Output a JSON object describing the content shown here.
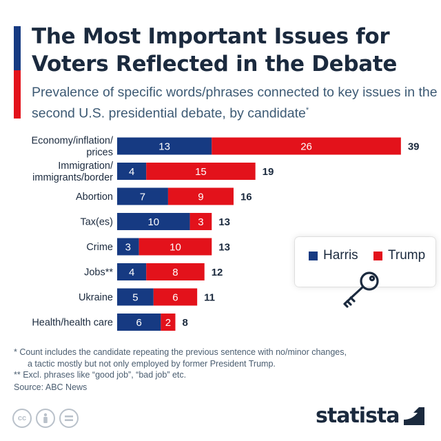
{
  "title": "The Most Important Issues for Voters Reflected in the Debate",
  "subtitle": "Prevalence of specific words/phrases connected to key issues in the second U.S. presidential debate, by candidate",
  "subtitle_mark": "*",
  "colors": {
    "harris": "#163a82",
    "trump": "#e3121b",
    "title_bar_top": "#163a82",
    "title_bar_bottom": "#e3121b"
  },
  "legend": {
    "harris": "Harris",
    "trump": "Trump",
    "icon": "key-icon"
  },
  "chart_data": {
    "type": "bar",
    "orientation": "horizontal",
    "stacked": true,
    "categories": [
      [
        "Economy/inflation/",
        "prices"
      ],
      [
        "Immigration/",
        "immigrants/border"
      ],
      [
        "Abortion"
      ],
      [
        "Tax(es)"
      ],
      [
        "Crime"
      ],
      [
        "Jobs**"
      ],
      [
        "Ukraine"
      ],
      [
        "Health/health care"
      ]
    ],
    "series": [
      {
        "name": "Harris",
        "values": [
          13,
          4,
          7,
          10,
          3,
          4,
          5,
          6
        ]
      },
      {
        "name": "Trump",
        "values": [
          26,
          15,
          9,
          3,
          10,
          8,
          6,
          2
        ]
      }
    ],
    "totals": [
      39,
      19,
      16,
      13,
      13,
      12,
      11,
      8
    ],
    "legend_position": "right",
    "grid": false
  },
  "footnotes": [
    "*   Count includes the candidate repeating the previous sentence with no/minor changes,",
    "a tactic mostly but not only employed by former President Trump.",
    "** Excl. phrases like “good job”, “bad job” etc."
  ],
  "source": "Source: ABC News",
  "license_icons": [
    "cc-icon",
    "attribution-icon",
    "no-derivatives-icon"
  ],
  "brand": "statista"
}
